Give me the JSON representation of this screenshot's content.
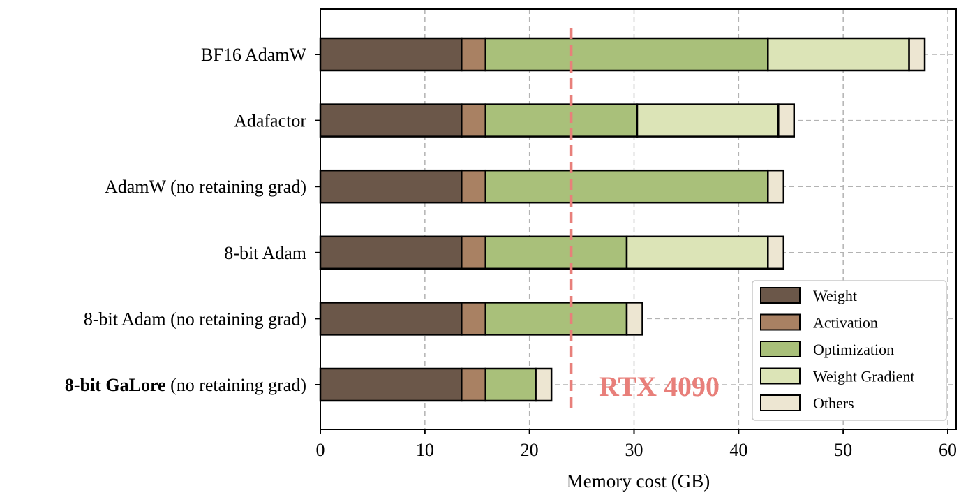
{
  "chart_data": {
    "type": "bar",
    "orientation": "horizontal",
    "stacked": true,
    "xlabel": "Memory cost (GB)",
    "xlim": [
      0,
      60.8
    ],
    "xticks": [
      0,
      10,
      20,
      30,
      40,
      50,
      60
    ],
    "grid": true,
    "legend_position": "lower-right",
    "categories": [
      "BF16 AdamW",
      "Adafactor",
      "AdamW (no retaining grad)",
      "8-bit Adam",
      "8-bit Adam (no retaining grad)",
      {
        "bold": "8-bit GaLore",
        "rest": " (no retaining grad)"
      }
    ],
    "series": [
      {
        "name": "Weight",
        "color": "#6b5749",
        "values": [
          13.5,
          13.5,
          13.5,
          13.5,
          13.5,
          13.5
        ]
      },
      {
        "name": "Activation",
        "color": "#a98163",
        "values": [
          2.3,
          2.3,
          2.3,
          2.3,
          2.3,
          2.3
        ]
      },
      {
        "name": "Optimization",
        "color": "#a9c07a",
        "values": [
          27.0,
          14.5,
          27.0,
          13.5,
          13.5,
          4.8
        ]
      },
      {
        "name": "Weight Gradient",
        "color": "#dce4b7",
        "values": [
          13.5,
          13.5,
          0,
          13.5,
          0,
          0
        ]
      },
      {
        "name": "Others",
        "color": "#ede6d2",
        "values": [
          1.5,
          1.5,
          1.5,
          1.5,
          1.5,
          1.5
        ]
      }
    ],
    "threshold": {
      "value": 24,
      "label": "RTX 4090",
      "color": "#e87f7a"
    }
  }
}
